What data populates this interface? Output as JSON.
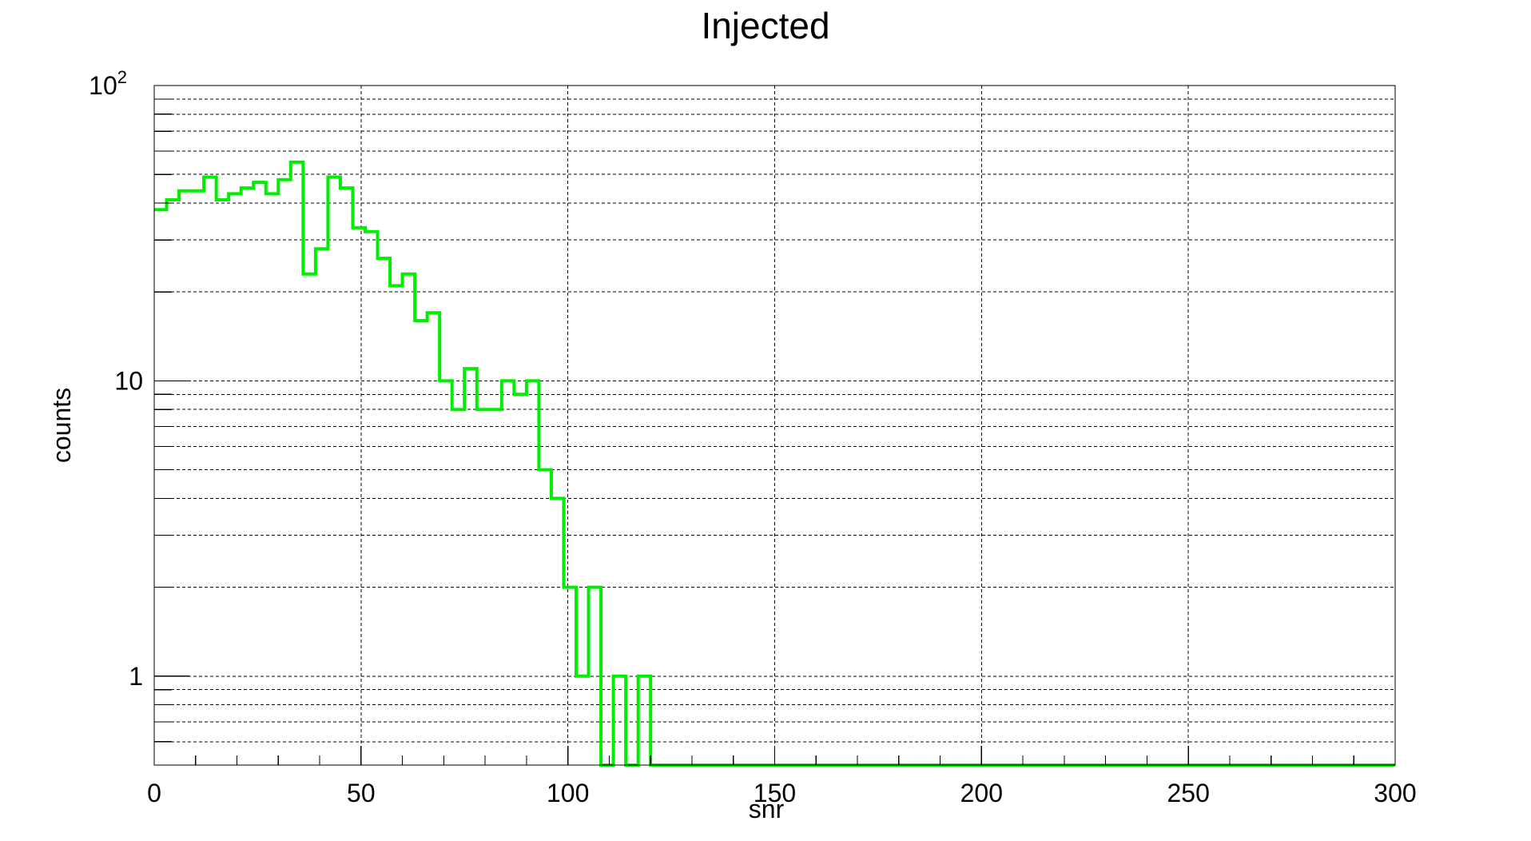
{
  "chart_data": {
    "type": "line",
    "style": "step-histogram",
    "title": "Injected",
    "xlabel": "snr",
    "ylabel": "counts",
    "xlim": [
      0,
      300
    ],
    "ylim": [
      0.5,
      100
    ],
    "y_scale": "log",
    "grid": true,
    "x_ticks": [
      0,
      50,
      100,
      150,
      200,
      250,
      300
    ],
    "x_tick_labels": [
      "0",
      "50",
      "100",
      "150",
      "200",
      "250",
      "300"
    ],
    "y_tick_labels": [
      {
        "value": 1,
        "label": "1"
      },
      {
        "value": 10,
        "label": "10"
      },
      {
        "value": 100,
        "base": "10",
        "exp": "2"
      }
    ],
    "series": [
      {
        "color": "#00ee00",
        "bin_width": 3,
        "x": [
          0,
          3,
          6,
          9,
          12,
          15,
          18,
          21,
          24,
          27,
          30,
          33,
          36,
          39,
          42,
          45,
          48,
          51,
          54,
          57,
          60,
          63,
          66,
          69,
          72,
          75,
          78,
          81,
          84,
          87,
          90,
          93,
          96,
          99,
          102,
          105,
          108,
          111,
          114,
          117,
          120,
          123,
          126,
          129,
          132,
          135,
          138,
          141,
          144,
          147,
          150,
          153,
          156,
          159,
          162,
          165,
          168,
          171,
          174,
          177,
          180,
          183,
          186,
          189,
          192,
          195,
          198,
          201,
          204,
          207,
          210,
          213,
          216,
          219,
          222,
          225,
          228,
          231,
          234,
          237,
          240,
          243,
          246,
          249,
          252,
          255,
          258,
          261,
          264,
          267,
          270,
          273,
          276,
          279,
          282,
          285,
          288,
          291,
          294,
          297
        ],
        "values": [
          38,
          41,
          44,
          44,
          49,
          41,
          43,
          45,
          47,
          43,
          48,
          55,
          23,
          28,
          49,
          45,
          33,
          32,
          26,
          21,
          23,
          16,
          17,
          10,
          8,
          11,
          8,
          8,
          10,
          9,
          10,
          5,
          4,
          2,
          1,
          2,
          0,
          1,
          0,
          1,
          0,
          0,
          0,
          0,
          0,
          0,
          0,
          0,
          0,
          0,
          0,
          0,
          0,
          0,
          0,
          0,
          0,
          0,
          0,
          0,
          0,
          0,
          0,
          0,
          0,
          0,
          0,
          0,
          0,
          0,
          0,
          0,
          0,
          0,
          0,
          0,
          0,
          0,
          0,
          0,
          0,
          0,
          0,
          0,
          0,
          0,
          0,
          0,
          0,
          0,
          0,
          0,
          0,
          0,
          0,
          0,
          0,
          0,
          0,
          0
        ]
      }
    ]
  }
}
